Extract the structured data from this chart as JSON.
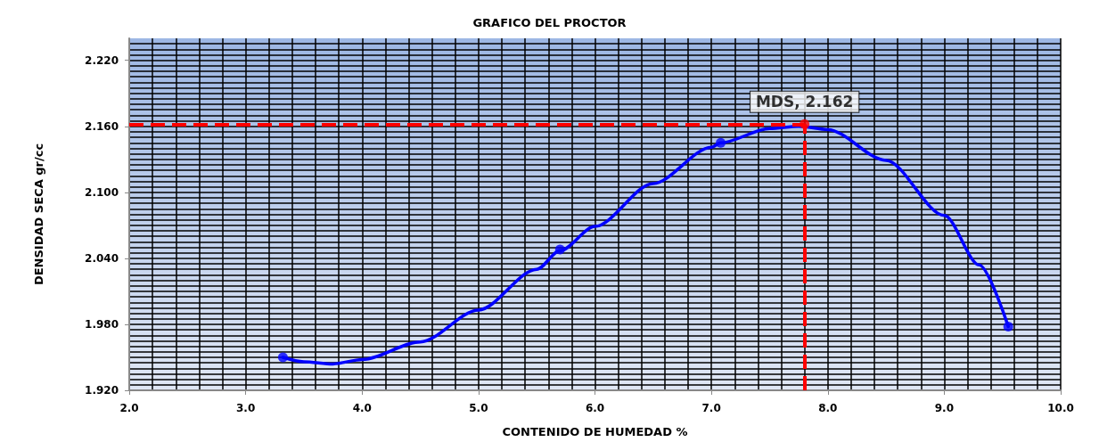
{
  "chart_data": {
    "type": "scatter",
    "title": "GRAFICO DEL PROCTOR",
    "xlabel": "CONTENIDO DE HUMEDAD %",
    "ylabel": "DENSIDAD SECA gr/cc",
    "series": [
      {
        "color": "#0000ff",
        "marker": "circle",
        "x": [
          3.32,
          5.7,
          7.08,
          9.55
        ],
        "values": [
          1.95,
          2.048,
          2.145,
          1.978
        ]
      },
      {
        "type": "line",
        "color": "#0000ff",
        "marker": "none",
        "line_style": "solid",
        "x": [
          3.32,
          3.5,
          3.75,
          4.0,
          4.5,
          5.0,
          5.5,
          5.7,
          6.0,
          6.5,
          7.0,
          7.08,
          7.5,
          7.75,
          8.0,
          8.5,
          9.0,
          9.3,
          9.55
        ],
        "values": [
          1.95,
          1.946,
          1.944,
          1.948,
          1.964,
          1.993,
          2.03,
          2.047,
          2.069,
          2.108,
          2.141,
          2.145,
          2.158,
          2.16,
          2.157,
          2.129,
          2.079,
          2.034,
          1.978
        ]
      },
      {
        "color": "#ff0000",
        "marker": "circle",
        "x": [
          7.8
        ],
        "values": [
          2.162
        ],
        "value_labels": [
          "MDS, 2.162"
        ]
      }
    ],
    "ref_lines": [
      {
        "axis": "y",
        "value": 2.162,
        "color": "#ff0000",
        "line_style": "dashed"
      },
      {
        "axis": "x",
        "value": 7.8,
        "color": "#ff0000",
        "line_style": "dashed"
      }
    ],
    "xlim": [
      2,
      10
    ],
    "xticks": [
      {
        "value": 2,
        "label": "2.0"
      },
      {
        "value": 3,
        "label": "3.0"
      },
      {
        "value": 4,
        "label": "4.0"
      },
      {
        "value": 5,
        "label": "5.0"
      },
      {
        "value": 6,
        "label": "6.0"
      },
      {
        "value": 7,
        "label": "7.0"
      },
      {
        "value": 8,
        "label": "8.0"
      },
      {
        "value": 9,
        "label": "9.0"
      },
      {
        "value": 10,
        "label": "10.0"
      }
    ],
    "ylim": [
      1.92,
      2.24
    ],
    "yticks": [
      {
        "value": 1.92,
        "label": "1.920"
      },
      {
        "value": 1.98,
        "label": "1.980"
      },
      {
        "value": 2.04,
        "label": "2.040"
      },
      {
        "value": 2.1,
        "label": "2.100"
      },
      {
        "value": 2.16,
        "label": "2.160"
      },
      {
        "value": 2.22,
        "label": "2.220"
      }
    ],
    "grid": true
  }
}
